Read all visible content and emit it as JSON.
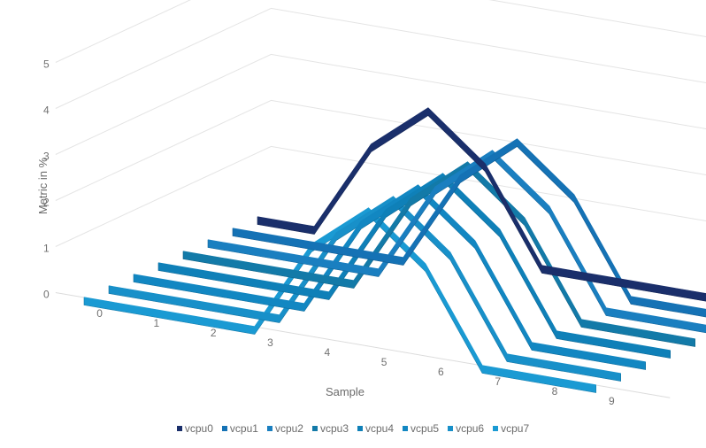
{
  "chart_data": {
    "type": "line",
    "view": "3d",
    "title": "",
    "xlabel": "Sample",
    "ylabel": "Metric in %",
    "x": [
      "0",
      "1",
      "2",
      "3",
      "4",
      "5",
      "6",
      "7",
      "8",
      "9"
    ],
    "y_ticks": [
      "0",
      "1",
      "2",
      "3",
      "4",
      "5"
    ],
    "ylim": [
      0,
      5
    ],
    "grid": true,
    "legend_position": "bottom",
    "series": [
      {
        "name": "vcpu0",
        "color": "#1a2f6b",
        "values": [
          0,
          0,
          2,
          3,
          2,
          0,
          0,
          0,
          0,
          0
        ]
      },
      {
        "name": "vcpu1",
        "color": "#1572b5",
        "values": [
          0,
          0,
          0,
          0,
          2,
          3,
          2,
          0,
          0,
          0
        ]
      },
      {
        "name": "vcpu2",
        "color": "#1a7fc0",
        "values": [
          0,
          0,
          0,
          0,
          2,
          3,
          2,
          0,
          0,
          0
        ]
      },
      {
        "name": "vcpu3",
        "color": "#137aa8",
        "values": [
          0,
          0,
          0,
          0,
          2,
          3,
          2,
          0,
          0,
          0
        ]
      },
      {
        "name": "vcpu4",
        "color": "#0f80b8",
        "values": [
          0,
          0,
          0,
          0,
          2,
          3,
          2,
          0,
          0,
          0
        ]
      },
      {
        "name": "vcpu5",
        "color": "#1287c2",
        "values": [
          0,
          0,
          0,
          0,
          2,
          3,
          2,
          0,
          0,
          0
        ]
      },
      {
        "name": "vcpu6",
        "color": "#1890c9",
        "values": [
          0,
          0,
          0,
          0,
          2,
          3,
          2,
          0,
          0,
          0
        ]
      },
      {
        "name": "vcpu7",
        "color": "#1a9ad3",
        "values": [
          0,
          0,
          0,
          0,
          2,
          3,
          2,
          0,
          0,
          0
        ]
      }
    ]
  }
}
